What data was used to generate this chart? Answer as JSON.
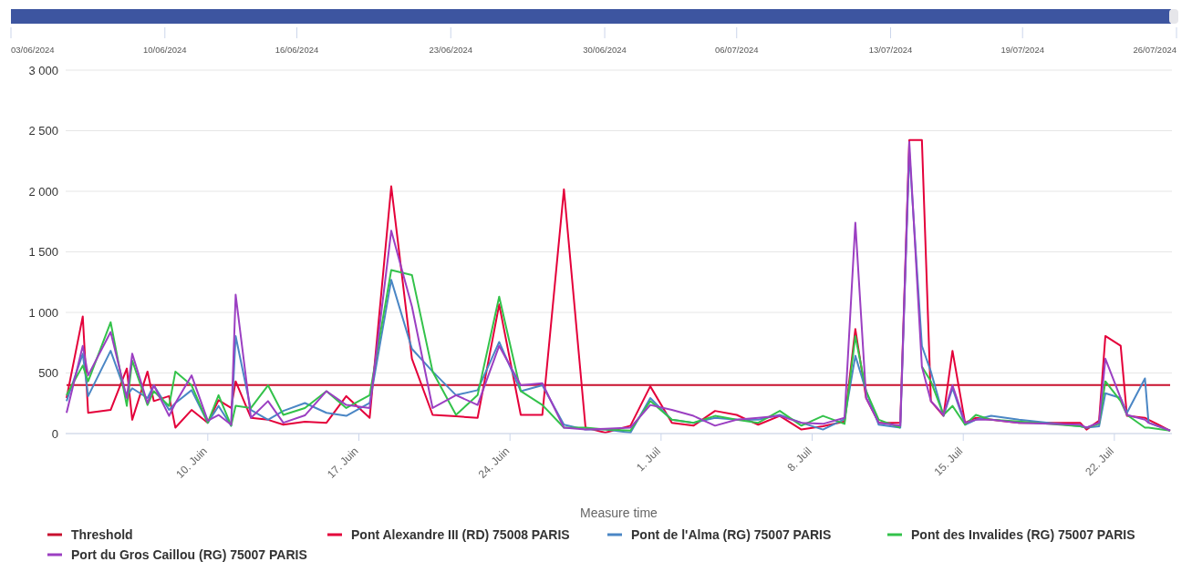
{
  "chart_data": {
    "type": "line",
    "xlabel": "Measure time",
    "x": [
      "2024-06-03T11:00",
      "2024-06-04T05:00",
      "2024-06-04T11:00",
      "2024-06-05T12:00",
      "2024-06-06T06:00",
      "2024-06-06T12:00",
      "2024-06-07T05:00",
      "2024-06-07T12:00",
      "2024-06-08T05:00",
      "2024-06-08T12:00",
      "2024-06-09T06:00",
      "2024-06-10T00:00",
      "2024-06-10T12:00",
      "2024-06-11T02:00",
      "2024-06-11T07:00",
      "2024-06-12T00:00",
      "2024-06-12T19:00",
      "2024-06-13T12:00",
      "2024-06-14T12:00",
      "2024-06-15T12:00",
      "2024-06-16T10:00",
      "2024-06-17T12:00",
      "2024-06-18T12:00",
      "2024-06-19T11:00",
      "2024-06-20T10:00",
      "2024-06-21T12:00",
      "2024-06-22T12:00",
      "2024-06-23T12:00",
      "2024-06-24T12:00",
      "2024-06-25T12:00",
      "2024-06-26T12:00",
      "2024-06-27T12:00",
      "2024-06-28T10:00",
      "2024-06-29T14:00",
      "2024-06-30T12:00",
      "2024-07-01T12:00",
      "2024-07-02T12:00",
      "2024-07-03T12:00",
      "2024-07-04T12:00",
      "2024-07-05T12:00",
      "2024-07-06T12:00",
      "2024-07-07T12:00",
      "2024-07-08T12:00",
      "2024-07-09T12:00",
      "2024-07-10T00:00",
      "2024-07-10T12:00",
      "2024-07-11T02:00",
      "2024-07-12T02:00",
      "2024-07-12T12:00",
      "2024-07-13T02:00",
      "2024-07-13T12:00",
      "2024-07-14T02:00",
      "2024-07-14T12:00",
      "2024-07-15T02:00",
      "2024-07-15T14:00",
      "2024-07-16T07:00",
      "2024-07-17T14:00",
      "2024-07-20T10:00",
      "2024-07-20T17:00",
      "2024-07-21T07:00",
      "2024-07-21T14:00",
      "2024-07-22T07:00",
      "2024-07-22T14:00",
      "2024-07-23T10:00",
      "2024-07-23T14:00",
      "2024-07-24T14:00"
    ],
    "series": [
      {
        "name": "Threshold",
        "color": "#c8102e",
        "x": [
          "2024-06-03T11:00",
          "2024-07-24T14:00"
        ],
        "values": [
          400,
          400
        ]
      },
      {
        "name": "Pont Alexandre III (RD) 75008 PARIS",
        "color": "#e4003a",
        "values": [
          293,
          967,
          171,
          195,
          537,
          114,
          512,
          268,
          309,
          49,
          195,
          89,
          276,
          211,
          431,
          130,
          114,
          73,
          98,
          89,
          309,
          130,
          2041,
          618,
          154,
          142,
          130,
          1065,
          154,
          154,
          2016,
          49,
          8,
          65,
          390,
          89,
          65,
          187,
          154,
          73,
          146,
          33,
          60,
          100,
          862,
          293,
          89,
          89,
          2423,
          2423,
          268,
          146,
          683,
          89,
          130,
          114,
          89,
          89,
          33,
          106,
          805,
          724,
          146,
          130,
          114,
          24
        ]
      },
      {
        "name": "Pont de l'Alma (RG) 75007 PARIS",
        "color": "#4a86c5",
        "values": [
          268,
          659,
          309,
          683,
          309,
          374,
          293,
          398,
          195,
          252,
          358,
          89,
          228,
          65,
          805,
          195,
          114,
          187,
          252,
          171,
          146,
          252,
          1268,
          699,
          512,
          317,
          358,
          756,
          350,
          398,
          73,
          33,
          33,
          8,
          293,
          114,
          89,
          130,
          114,
          114,
          154,
          89,
          33,
          120,
          642,
          350,
          73,
          49,
          2325,
          724,
          512,
          146,
          374,
          73,
          114,
          146,
          114,
          60,
          49,
          60,
          333,
          293,
          171,
          455,
          89,
          24
        ]
      },
      {
        "name": "Pont des Invalides (RG) 75007 PARIS",
        "color": "#33c24a",
        "values": [
          317,
          561,
          431,
          919,
          228,
          602,
          236,
          350,
          228,
          512,
          398,
          89,
          317,
          65,
          230,
          211,
          398,
          154,
          211,
          350,
          211,
          317,
          1350,
          1309,
          512,
          154,
          317,
          1130,
          350,
          236,
          49,
          49,
          33,
          24,
          268,
          114,
          89,
          146,
          114,
          89,
          187,
          65,
          146,
          80,
          805,
          350,
          114,
          49,
          null,
          553,
          431,
          154,
          228,
          73,
          154,
          114,
          100,
          60,
          49,
          80,
          431,
          268,
          154,
          49,
          49,
          24
        ]
      },
      {
        "name": "Port du Gros Caillou (RG) 75007 PARIS",
        "color": "#9b3fc2",
        "values": [
          171,
          724,
          480,
          838,
          293,
          659,
          252,
          398,
          146,
          252,
          480,
          106,
          154,
          73,
          1146,
          130,
          268,
          89,
          150,
          350,
          236,
          211,
          1675,
          1049,
          211,
          317,
          236,
          724,
          398,
          415,
          49,
          33,
          40,
          49,
          236,
          195,
          146,
          65,
          114,
          130,
          146,
          89,
          80,
          130,
          1740,
          293,
          89,
          65,
          2407,
          553,
          268,
          154,
          398,
          89,
          114,
          114,
          89,
          73,
          49,
          90,
          618,
          293,
          154,
          114,
          89,
          24
        ]
      }
    ],
    "xlim": [
      "2024-06-03T10:00",
      "2024-07-24T16:00"
    ],
    "xticks": [
      {
        "value": "2024-06-10",
        "label": "10. Juin"
      },
      {
        "value": "2024-06-17",
        "label": "17. Juin"
      },
      {
        "value": "2024-06-24",
        "label": "24. Juin"
      },
      {
        "value": "2024-07-01",
        "label": "1. Juil"
      },
      {
        "value": "2024-07-08",
        "label": "8. Juil"
      },
      {
        "value": "2024-07-15",
        "label": "15. Juil"
      },
      {
        "value": "2024-07-22",
        "label": "22. Juil"
      }
    ],
    "x2lim": [
      "2024-06-03",
      "2024-07-26"
    ],
    "x2ticks": [
      {
        "value": "2024-06-03",
        "label": "03/06/2024"
      },
      {
        "value": "2024-06-10",
        "label": "10/06/2024"
      },
      {
        "value": "2024-06-16",
        "label": "16/06/2024"
      },
      {
        "value": "2024-06-23",
        "label": "23/06/2024"
      },
      {
        "value": "2024-06-30",
        "label": "30/06/2024"
      },
      {
        "value": "2024-07-06",
        "label": "06/07/2024"
      },
      {
        "value": "2024-07-13",
        "label": "13/07/2024"
      },
      {
        "value": "2024-07-19",
        "label": "19/07/2024"
      },
      {
        "value": "2024-07-26",
        "label": "26/07/2024"
      }
    ],
    "ylim": [
      0,
      3000
    ],
    "yticks": [
      0,
      500,
      {
        "value": 1000,
        "label": "1 000"
      },
      {
        "value": 1500,
        "label": "1 500"
      },
      {
        "value": 2000,
        "label": "2 000"
      },
      {
        "value": 2500,
        "label": "2 500"
      },
      {
        "value": 3000,
        "label": "3 000"
      }
    ],
    "grid": "y",
    "legend": "bottom",
    "line_style": "solid"
  }
}
